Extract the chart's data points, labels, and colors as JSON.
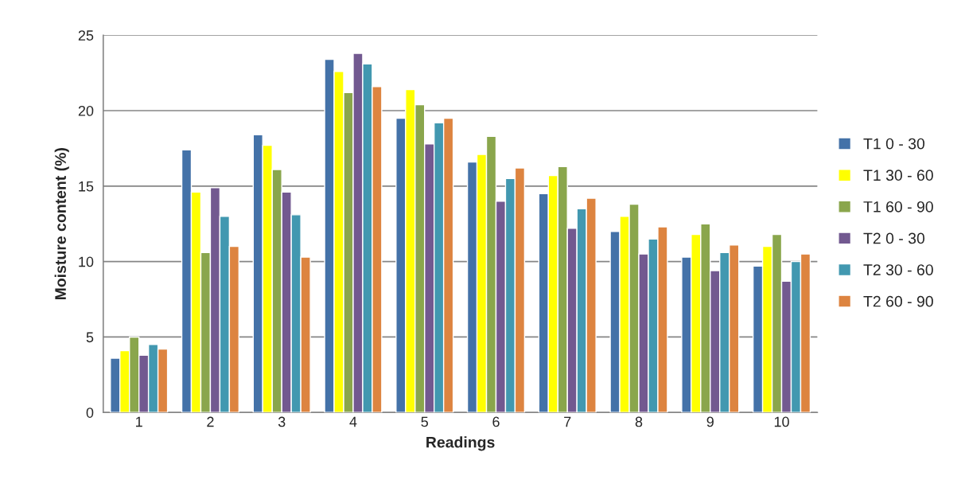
{
  "chart_data": {
    "type": "bar",
    "xlabel": "Readings",
    "ylabel": "Moisture content (%)",
    "categories": [
      "1",
      "2",
      "3",
      "4",
      "5",
      "6",
      "7",
      "8",
      "9",
      "10"
    ],
    "series": [
      {
        "name": "T1 0 - 30",
        "color": "#4472a8",
        "values": [
          3.6,
          17.4,
          18.4,
          23.4,
          19.5,
          16.6,
          14.5,
          12.0,
          10.3,
          9.7
        ]
      },
      {
        "name": "T1 30 - 60",
        "color": "#ffff00",
        "values": [
          4.1,
          14.6,
          17.7,
          22.6,
          21.4,
          17.1,
          15.7,
          13.0,
          11.8,
          11.0
        ]
      },
      {
        "name": "T1 60 - 90",
        "color": "#8aa64c",
        "values": [
          5.0,
          10.6,
          16.1,
          21.2,
          20.4,
          18.3,
          16.3,
          13.8,
          12.5,
          11.8
        ]
      },
      {
        "name": "T2 0 - 30",
        "color": "#725990",
        "values": [
          3.8,
          14.9,
          14.6,
          23.8,
          17.8,
          14.0,
          12.2,
          10.5,
          9.4,
          8.7
        ]
      },
      {
        "name": "T2 30 - 60",
        "color": "#4298b0",
        "values": [
          4.5,
          13.0,
          13.1,
          23.1,
          19.2,
          15.5,
          13.5,
          11.5,
          10.6,
          10.0
        ]
      },
      {
        "name": "T2 60 - 90",
        "color": "#dd8440",
        "values": [
          4.2,
          11.0,
          10.3,
          21.6,
          19.5,
          16.2,
          14.2,
          12.3,
          11.1,
          10.5
        ]
      }
    ],
    "ylim": [
      0,
      25
    ],
    "yticks": [
      0,
      5,
      10,
      15,
      20,
      25
    ],
    "grid": "y",
    "legend": "right"
  }
}
